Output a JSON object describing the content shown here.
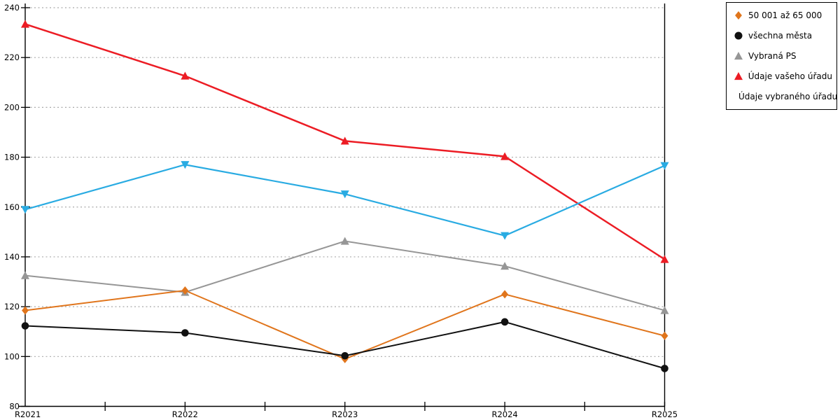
{
  "chart_data": {
    "type": "line",
    "title": "",
    "xlabel": "",
    "ylabel": "",
    "categories": [
      "R2021",
      "R2022",
      "R2023",
      "R2024",
      "R2025"
    ],
    "series": [
      {
        "name": "50 001 až 65 000",
        "marker": "diamond",
        "color": "#E0751C",
        "line_width": 2,
        "values": [
          118.5,
          126.5,
          99.0,
          125.0,
          108.3
        ]
      },
      {
        "name": "všechna města",
        "marker": "circle",
        "color": "#111111",
        "line_width": 2,
        "values": [
          112.3,
          109.5,
          100.3,
          113.9,
          95.2
        ]
      },
      {
        "name": "Vybraná PS",
        "marker": "triangle-up",
        "color": "#969696",
        "line_width": 2,
        "values": [
          132.5,
          125.8,
          146.3,
          136.3,
          118.5
        ]
      },
      {
        "name": "Údaje vašeho úřadu",
        "marker": "triangle-up",
        "color": "#EC1C24",
        "line_width": 2.5,
        "values": [
          233.4,
          212.6,
          186.5,
          180.3,
          139.0
        ]
      },
      {
        "name": "Údaje vybraného úřadu",
        "marker": "triangle-down",
        "color": "#29ABE2",
        "line_width": 2.2,
        "values": [
          159.0,
          177.0,
          165.2,
          148.5,
          176.6
        ]
      }
    ],
    "y_axis": {
      "min": 80,
      "max": 240,
      "step": 20,
      "tick_labels": [
        "80",
        "100",
        "120",
        "140",
        "160",
        "180",
        "200",
        "220",
        "240"
      ]
    },
    "x_axis": {
      "tick_labels": [
        "R2021",
        "R2022",
        "R2023",
        "R2024",
        "R2025"
      ],
      "minor_ticks_between": true
    },
    "grid": {
      "horizontal": true,
      "style": "dotted"
    },
    "legend_position": "top-right"
  },
  "colors": {
    "background": "#FFFFFF",
    "axis": "#000000",
    "gridline": "#A9A9A9",
    "text": "#000000"
  }
}
